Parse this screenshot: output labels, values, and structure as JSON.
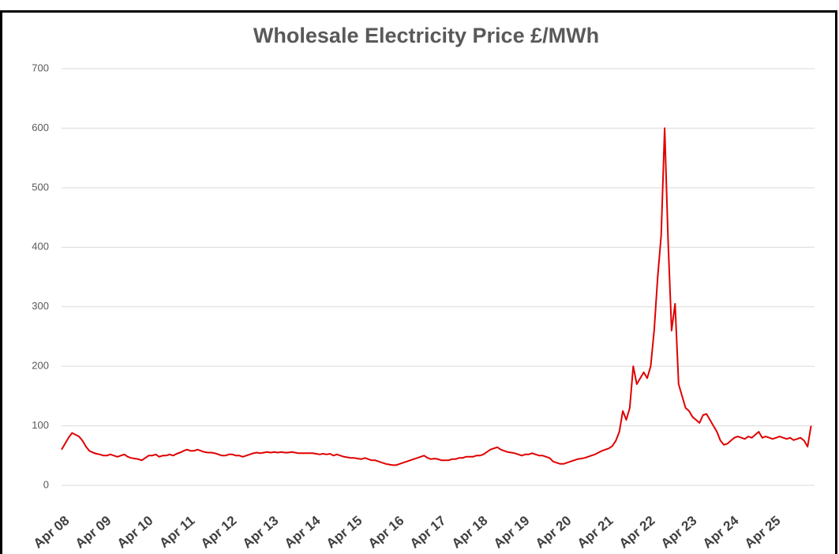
{
  "chart_data": {
    "type": "line",
    "title": "Wholesale Electricity Price £/MWh",
    "categories": [
      "Apr 08",
      null,
      null,
      null,
      null,
      null,
      null,
      null,
      null,
      null,
      null,
      null,
      "Apr 09",
      null,
      null,
      null,
      null,
      null,
      null,
      null,
      null,
      null,
      null,
      null,
      "Apr 10",
      null,
      null,
      null,
      null,
      null,
      null,
      null,
      null,
      null,
      null,
      null,
      "Apr 11",
      null,
      null,
      null,
      null,
      null,
      null,
      null,
      null,
      null,
      null,
      null,
      "Apr 12",
      null,
      null,
      null,
      null,
      null,
      null,
      null,
      null,
      null,
      null,
      null,
      "Apr 13",
      null,
      null,
      null,
      null,
      null,
      null,
      null,
      null,
      null,
      null,
      null,
      "Apr 14",
      null,
      null,
      null,
      null,
      null,
      null,
      null,
      null,
      null,
      null,
      null,
      "Apr 15",
      null,
      null,
      null,
      null,
      null,
      null,
      null,
      null,
      null,
      null,
      null,
      "Apr 16",
      null,
      null,
      null,
      null,
      null,
      null,
      null,
      null,
      null,
      null,
      null,
      "Apr 17",
      null,
      null,
      null,
      null,
      null,
      null,
      null,
      null,
      null,
      null,
      null,
      "Apr 18",
      null,
      null,
      null,
      null,
      null,
      null,
      null,
      null,
      null,
      null,
      null,
      "Apr 19",
      null,
      null,
      null,
      null,
      null,
      null,
      null,
      null,
      null,
      null,
      null,
      "Apr 20",
      null,
      null,
      null,
      null,
      null,
      null,
      null,
      null,
      null,
      null,
      null,
      "Apr 21",
      null,
      null,
      null,
      null,
      null,
      null,
      null,
      null,
      null,
      null,
      null,
      "Apr 22",
      null,
      null,
      null,
      null,
      null,
      null,
      null,
      null,
      null,
      null,
      null,
      "Apr 23",
      null,
      null,
      null,
      null,
      null,
      null,
      null,
      null,
      null,
      null,
      null,
      "Apr 24",
      null,
      null,
      null,
      null,
      null,
      null,
      null,
      null,
      null,
      null,
      null,
      "Apr 25",
      null,
      null,
      null,
      null,
      null,
      null,
      null,
      null,
      null,
      null,
      null
    ],
    "values": [
      60,
      70,
      80,
      88,
      85,
      82,
      75,
      65,
      58,
      55,
      53,
      52,
      50,
      50,
      52,
      50,
      48,
      50,
      52,
      48,
      46,
      45,
      44,
      42,
      46,
      50,
      50,
      52,
      48,
      50,
      50,
      52,
      50,
      53,
      55,
      58,
      60,
      58,
      58,
      60,
      58,
      56,
      55,
      55,
      54,
      52,
      50,
      50,
      52,
      52,
      50,
      50,
      48,
      50,
      52,
      54,
      55,
      54,
      55,
      56,
      55,
      56,
      55,
      56,
      55,
      55,
      56,
      55,
      54,
      54,
      54,
      54,
      54,
      53,
      52,
      53,
      52,
      53,
      50,
      52,
      50,
      48,
      47,
      46,
      46,
      45,
      44,
      46,
      44,
      42,
      42,
      40,
      38,
      36,
      35,
      34,
      34,
      36,
      38,
      40,
      42,
      44,
      46,
      48,
      50,
      46,
      44,
      45,
      44,
      42,
      42,
      42,
      44,
      44,
      46,
      46,
      48,
      48,
      48,
      50,
      50,
      52,
      56,
      60,
      62,
      64,
      60,
      58,
      56,
      55,
      54,
      52,
      50,
      52,
      52,
      54,
      52,
      50,
      50,
      48,
      46,
      40,
      38,
      36,
      36,
      38,
      40,
      42,
      44,
      45,
      46,
      48,
      50,
      52,
      55,
      58,
      60,
      62,
      66,
      75,
      90,
      125,
      110,
      130,
      200,
      170,
      180,
      190,
      180,
      200,
      260,
      350,
      420,
      600,
      410,
      260,
      305,
      170,
      150,
      130,
      125,
      115,
      110,
      105,
      118,
      120,
      110,
      100,
      90,
      75,
      68,
      70,
      75,
      80,
      82,
      80,
      78,
      82,
      80,
      85,
      90,
      80,
      82,
      80,
      78,
      80,
      82,
      80,
      78,
      80,
      76,
      78,
      80,
      75,
      65,
      100
    ],
    "color": "#e00000",
    "ylim": [
      0,
      700
    ],
    "yticks": [
      0,
      100,
      200,
      300,
      400,
      500,
      600,
      700
    ],
    "grid": true
  }
}
